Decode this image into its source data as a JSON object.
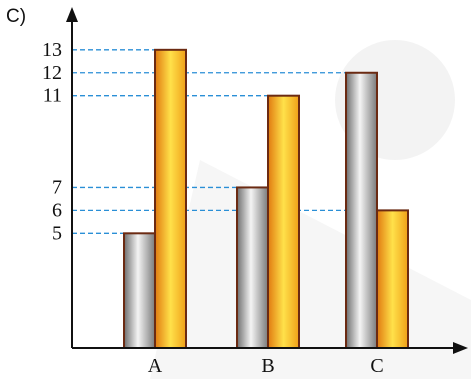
{
  "panel_label": "C)",
  "chart_data": {
    "type": "bar",
    "categories": [
      "A",
      "B",
      "C"
    ],
    "series": [
      {
        "values": [
          5,
          7,
          12
        ],
        "color": "#9a9a9a"
      },
      {
        "values": [
          13,
          11,
          6
        ],
        "color": "#f4a21c"
      }
    ],
    "y_tick_labels": [
      "5",
      "6",
      "7",
      "11",
      "12",
      "13"
    ],
    "ylim": [
      0,
      14.3
    ],
    "grid": false,
    "guide_lines": "dashed",
    "guide_color": "#2a8fd6",
    "bar_outline_color": "#6b2a12",
    "axis_color": "#111111"
  }
}
